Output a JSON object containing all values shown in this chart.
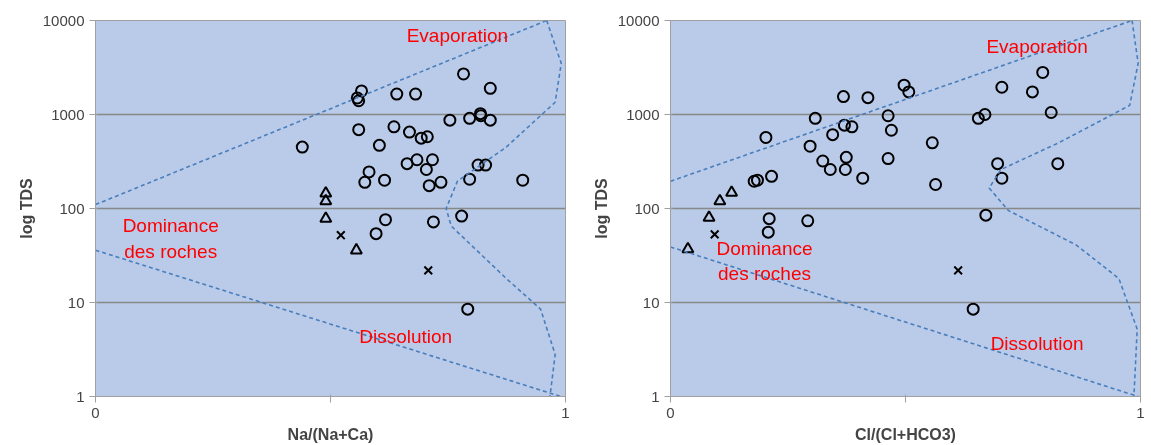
{
  "chart_data": [
    {
      "type": "scatter",
      "xlabel": "Na/(Na+Ca)",
      "ylabel": "log TDS",
      "log": "y",
      "grid": "y",
      "xlim": [
        0,
        1
      ],
      "xticks": [
        0,
        {
          "value": 0.5,
          "label": null
        },
        1
      ],
      "ylim": [
        1,
        10000
      ],
      "yticks": [
        1,
        10,
        100,
        1000,
        10000
      ],
      "annotations": [
        "Evaporation",
        "Dominance des roches",
        "Dissolution"
      ],
      "series": [
        {
          "marker": "circle",
          "color": "#000000",
          "x": [
            0.783,
            0.84,
            0.566,
            0.557,
            0.56,
            0.641,
            0.681,
            0.754,
            0.796,
            0.819,
            0.82,
            0.84,
            0.56,
            0.635,
            0.668,
            0.693,
            0.706,
            0.604,
            0.44,
            0.663,
            0.684,
            0.717,
            0.704,
            0.814,
            0.83,
            0.582,
            0.573,
            0.615,
            0.71,
            0.735,
            0.796,
            0.909,
            0.617,
            0.597,
            0.719,
            0.779,
            0.792
          ],
          "values": [
            2700,
            1900,
            1780,
            1500,
            1400,
            1650,
            1650,
            870,
            910,
            1020,
            970,
            870,
            690,
            740,
            650,
            560,
            580,
            470,
            450,
            300,
            330,
            330,
            260,
            290,
            290,
            245,
            190,
            200,
            175,
            190,
            205,
            200,
            76,
            54,
            72,
            83,
            8.5
          ]
        },
        {
          "marker": "triangle",
          "color": "#000000",
          "x": [
            0.49,
            0.49,
            0.49,
            0.555
          ],
          "values": [
            145,
            120,
            78,
            36
          ]
        },
        {
          "marker": "cross",
          "color": "#000000",
          "x": [
            0.522,
            0.708
          ],
          "values": [
            52,
            22
          ]
        },
        {
          "type": "line",
          "line_style": "dashed",
          "color": "#4a7ebb",
          "x": [
            0,
            0.96
          ],
          "values": [
            110,
            10000
          ]
        },
        {
          "type": "line",
          "line_style": "dashed",
          "color": "#4a7ebb",
          "x": [
            0,
            0.99
          ],
          "values": [
            36,
            1
          ]
        },
        {
          "type": "line",
          "line_style": "dashed",
          "color": "#4a7ebb",
          "x": [
            0.96,
            0.991,
            0.978,
            0.874,
            0.77,
            0.746,
            0.757,
            0.874,
            0.947,
            0.978,
            0.967
          ],
          "values": [
            10000,
            3500,
            1350,
            450,
            195,
            100,
            65,
            18,
            8.5,
            2.8,
            1
          ]
        }
      ]
    },
    {
      "type": "scatter",
      "xlabel": "Cl/(Cl+HCO3)",
      "ylabel": "log TDS",
      "log": "y",
      "grid": "y",
      "xlim": [
        0,
        1
      ],
      "xticks": [
        0,
        {
          "value": 0.5,
          "label": null
        },
        1
      ],
      "ylim": [
        1,
        10000
      ],
      "yticks": [
        1,
        10,
        100,
        1000,
        10000
      ],
      "annotations": [
        "Evaporation",
        "Dominance des roches",
        "Dissolution"
      ],
      "series": [
        {
          "marker": "circle",
          "color": "#000000",
          "x": [
            0.792,
            0.705,
            0.77,
            0.81,
            0.497,
            0.507,
            0.368,
            0.42,
            0.308,
            0.463,
            0.655,
            0.669,
            0.203,
            0.37,
            0.386,
            0.345,
            0.47,
            0.297,
            0.557,
            0.324,
            0.34,
            0.374,
            0.372,
            0.463,
            0.409,
            0.696,
            0.824,
            0.705,
            0.564,
            0.178,
            0.185,
            0.215,
            0.21,
            0.208,
            0.292,
            0.671,
            0.644
          ],
          "values": [
            2800,
            1950,
            1740,
            1050,
            2050,
            1740,
            1550,
            1510,
            910,
            970,
            910,
            1000,
            570,
            770,
            740,
            610,
            680,
            460,
            500,
            320,
            260,
            350,
            260,
            340,
            210,
            300,
            300,
            210,
            180,
            195,
            200,
            220,
            78,
            56,
            74,
            85,
            8.5
          ]
        },
        {
          "marker": "triangle",
          "color": "#000000",
          "x": [
            0.105,
            0.13,
            0.082,
            0.037
          ],
          "values": [
            120,
            148,
            80,
            37
          ]
        },
        {
          "marker": "cross",
          "color": "#000000",
          "x": [
            0.094,
            0.612
          ],
          "values": [
            53,
            22
          ]
        },
        {
          "type": "line",
          "line_style": "dashed",
          "color": "#4a7ebb",
          "x": [
            0,
            0.982
          ],
          "values": [
            195,
            10000
          ]
        },
        {
          "type": "line",
          "line_style": "dashed",
          "color": "#4a7ebb",
          "x": [
            0,
            0.995
          ],
          "values": [
            39,
            1
          ]
        },
        {
          "type": "line",
          "line_style": "dashed",
          "color": "#4a7ebb",
          "x": [
            0.982,
            0.995,
            0.977,
            0.826,
            0.703,
            0.678,
            0.719,
            0.863,
            0.954,
            0.993,
            0.986
          ],
          "values": [
            10000,
            3500,
            1250,
            500,
            260,
            165,
            95,
            41,
            18,
            5.2,
            1
          ]
        }
      ]
    }
  ]
}
